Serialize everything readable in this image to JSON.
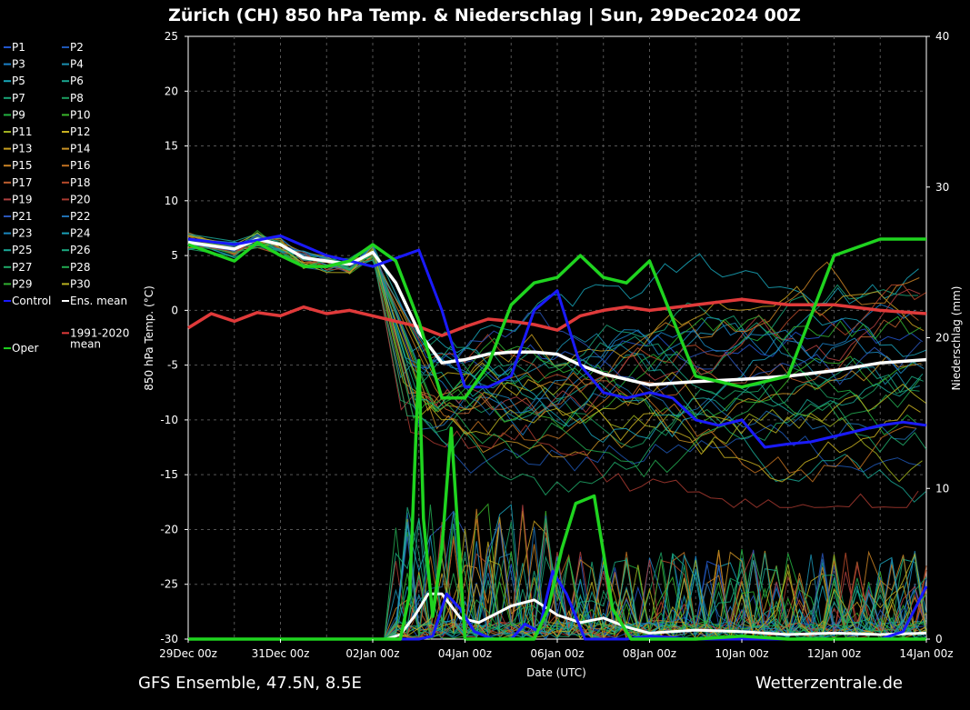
{
  "title": "Zürich  (CH)  850 hPa Temp. & Niederschlag | Sun, 29Dec2024 00Z",
  "footer": {
    "left": "GFS Ensemble, 47.5N, 8.5E",
    "right": "Wetterzentrale.de"
  },
  "chart_data": {
    "type": "line",
    "title": "Zürich  (CH)  850 hPa Temp. & Niederschlag | Sun, 29Dec2024 00Z",
    "xlabel": "Date (UTC)",
    "ylabel": "850 hPa Temp. (°C)",
    "y2label": "Niederschlag (mm)",
    "ylim": [
      -30,
      25
    ],
    "y2lim": [
      0,
      40
    ],
    "xlim": [
      0,
      16
    ],
    "x_unit": "days since 29Dec 00z",
    "x_ticks": [
      0,
      2,
      4,
      6,
      8,
      10,
      12,
      14,
      16
    ],
    "x_tick_labels": [
      "29Dec 00z",
      "31Dec 00z",
      "02Jan 00z",
      "04Jan 00z",
      "06Jan 00z",
      "08Jan 00z",
      "10Jan 00z",
      "12Jan 00z",
      "14Jan 00z"
    ],
    "y_ticks": [
      25,
      20,
      15,
      10,
      5,
      0,
      -5,
      -10,
      -15,
      -20,
      -25,
      -30
    ],
    "y_tick_labels": [
      "25",
      "20",
      "15",
      "10",
      "5",
      "0",
      "-5",
      "-10",
      "-15",
      "-20",
      "-25",
      "-30"
    ],
    "y2_ticks": [
      40,
      30,
      20,
      10,
      0
    ],
    "y2_tick_labels": [
      "40",
      "30",
      "20",
      "10",
      "0"
    ],
    "grid": true,
    "legend_position": "left-outside",
    "legend": [
      {
        "label": "P1",
        "color": "#2255cc"
      },
      {
        "label": "P2",
        "color": "#1f57b5"
      },
      {
        "label": "P3",
        "color": "#1a80c8"
      },
      {
        "label": "P4",
        "color": "#1a8fb0"
      },
      {
        "label": "P5",
        "color": "#17a5b8"
      },
      {
        "label": "P6",
        "color": "#19a590"
      },
      {
        "label": "P7",
        "color": "#1aa578"
      },
      {
        "label": "P8",
        "color": "#1b9e60"
      },
      {
        "label": "P9",
        "color": "#22b040"
      },
      {
        "label": "P10",
        "color": "#3ab52a"
      },
      {
        "label": "P11",
        "color": "#9fb020"
      },
      {
        "label": "P12",
        "color": "#c8b020"
      },
      {
        "label": "P13",
        "color": "#c9a020"
      },
      {
        "label": "P14",
        "color": "#c99225"
      },
      {
        "label": "P15",
        "color": "#c98325"
      },
      {
        "label": "P16",
        "color": "#c07020"
      },
      {
        "label": "P17",
        "color": "#c06030"
      },
      {
        "label": "P18",
        "color": "#b84a2a"
      },
      {
        "label": "P19",
        "color": "#b04040"
      },
      {
        "label": "P20",
        "color": "#a83a30"
      },
      {
        "label": "P21",
        "color": "#2a55b8"
      },
      {
        "label": "P22",
        "color": "#1f6fb0"
      },
      {
        "label": "P23",
        "color": "#1a88c0"
      },
      {
        "label": "P24",
        "color": "#1aa0b8"
      },
      {
        "label": "P25",
        "color": "#1aa898"
      },
      {
        "label": "P26",
        "color": "#1aa880"
      },
      {
        "label": "P27",
        "color": "#1fa868"
      },
      {
        "label": "P28",
        "color": "#22a850"
      },
      {
        "label": "P29",
        "color": "#30b030"
      },
      {
        "label": "P30",
        "color": "#b8b020"
      },
      {
        "label": "Control",
        "color": "#1a1aff"
      },
      {
        "label": "Ens. mean",
        "color": "#ffffff"
      },
      {
        "label": "1991-2020\nmean",
        "color": "#e03a3a"
      },
      {
        "label": "Oper",
        "color": "#1fd41f"
      }
    ],
    "series": [
      {
        "name": "Control",
        "axis": "temp",
        "color": "#1a1aff",
        "width": 3,
        "x": [
          0,
          1,
          2,
          3,
          4,
          5,
          5.5,
          6,
          6.5,
          7,
          7.5,
          8,
          8.5,
          9,
          9.5,
          10,
          10.5,
          11,
          11.5,
          12,
          12.5,
          13,
          13.5,
          14,
          14.5,
          15,
          15.5,
          16
        ],
        "y": [
          6.5,
          6,
          6.8,
          5,
          4,
          5.5,
          0,
          -7,
          -7,
          -6,
          0,
          1.8,
          -5,
          -7.5,
          -8,
          -7.5,
          -8,
          -10,
          -10.5,
          -10,
          -12.5,
          -12.2,
          -12,
          -11.5,
          -11,
          -10.5,
          -10.2,
          -10.5
        ]
      },
      {
        "name": "Ens. mean",
        "axis": "temp",
        "color": "#ffffff",
        "width": 3.5,
        "x": [
          0,
          1,
          1.5,
          2,
          2.5,
          3,
          3.5,
          4,
          4.5,
          5,
          5.5,
          6,
          6.5,
          7,
          7.5,
          8,
          8.5,
          9,
          10,
          11,
          12,
          13,
          14,
          15,
          16
        ],
        "y": [
          6.2,
          5.6,
          6.5,
          6,
          4.8,
          4.5,
          4.2,
          5.3,
          2.5,
          -2,
          -4.8,
          -4.5,
          -4,
          -3.8,
          -3.8,
          -4,
          -5,
          -5.8,
          -6.8,
          -6.5,
          -6.3,
          -6,
          -5.5,
          -4.8,
          -4.5
        ]
      },
      {
        "name": "1991-2020 mean",
        "axis": "temp",
        "color": "#e03a3a",
        "width": 3.5,
        "x": [
          0,
          0.5,
          1,
          1.5,
          2,
          2.5,
          3,
          3.5,
          4,
          4.5,
          5,
          5.5,
          6,
          6.5,
          7,
          7.5,
          8,
          8.5,
          9,
          9.5,
          10,
          11,
          12,
          13,
          14,
          15,
          16
        ],
        "y": [
          -1.6,
          -0.3,
          -1,
          -0.2,
          -0.5,
          0.3,
          -0.3,
          0,
          -0.5,
          -1,
          -1.5,
          -2.3,
          -1.5,
          -0.8,
          -1,
          -1.3,
          -1.8,
          -0.5,
          0,
          0.3,
          0,
          0.5,
          1,
          0.5,
          0.5,
          0,
          -0.3
        ]
      },
      {
        "name": "Oper",
        "axis": "temp",
        "color": "#1fd41f",
        "width": 3.5,
        "x": [
          0,
          1,
          1.5,
          2,
          2.5,
          3,
          3.5,
          4,
          4.5,
          5,
          5.5,
          6,
          6.5,
          7,
          7.5,
          8,
          8.5,
          9,
          9.5,
          10,
          11,
          12,
          13,
          14,
          15,
          16
        ],
        "y": [
          6,
          4.5,
          6.2,
          5,
          4,
          4,
          4.5,
          6,
          4.5,
          -1,
          -8,
          -8,
          -5,
          0.5,
          2.5,
          3,
          5,
          3,
          2.5,
          4.5,
          -6,
          -7,
          -6,
          5,
          6.5,
          6.5
        ]
      },
      {
        "name": "Control precip",
        "axis": "precip",
        "color": "#1a1aff",
        "width": 3,
        "x": [
          0,
          1,
          2,
          3,
          4,
          4.5,
          5,
          5.3,
          5.6,
          5.9,
          6.2,
          6.6,
          7,
          7.3,
          7.6,
          7.9,
          8.2,
          8.6,
          9,
          9.5,
          10,
          11,
          12,
          13,
          14,
          15,
          15.5,
          16
        ],
        "y": [
          0,
          0,
          0,
          0,
          0,
          0,
          0,
          0.2,
          3,
          2,
          0.5,
          0,
          0,
          1,
          0.5,
          4.5,
          3,
          0,
          0,
          0,
          0.2,
          0,
          0,
          0,
          0,
          0,
          0.5,
          3.5
        ]
      },
      {
        "name": "Ens. mean precip",
        "axis": "precip",
        "color": "#ffffff",
        "width": 3,
        "x": [
          0,
          1,
          2,
          3,
          4,
          4.3,
          4.6,
          4.9,
          5.2,
          5.5,
          5.9,
          6.3,
          7,
          7.5,
          8,
          8.5,
          9,
          9.5,
          10,
          11,
          12,
          13,
          14,
          15,
          16
        ],
        "y": [
          0,
          0,
          0,
          0,
          0,
          0,
          0.3,
          1.5,
          3,
          3,
          1.4,
          1.1,
          2.2,
          2.6,
          1.6,
          1.1,
          1.4,
          0.8,
          0.4,
          0.6,
          0.5,
          0.3,
          0.4,
          0.3,
          0.4
        ]
      },
      {
        "name": "Oper precip",
        "axis": "precip",
        "color": "#1fd41f",
        "width": 3.5,
        "x": [
          0,
          1,
          2,
          3,
          4,
          4.6,
          4.8,
          5,
          5.1,
          5.3,
          5.5,
          5.7,
          6,
          7,
          7.5,
          7.8,
          8.1,
          8.4,
          8.8,
          9.2,
          9.6,
          10,
          11,
          12,
          13,
          14,
          15,
          16
        ],
        "y": [
          0,
          0,
          0,
          0,
          0,
          0,
          3,
          18.5,
          8,
          1.5,
          6,
          14,
          0,
          0,
          0,
          2,
          6,
          9,
          9.5,
          2,
          0,
          0,
          0,
          0.2,
          0,
          0,
          0,
          0
        ]
      }
    ]
  }
}
